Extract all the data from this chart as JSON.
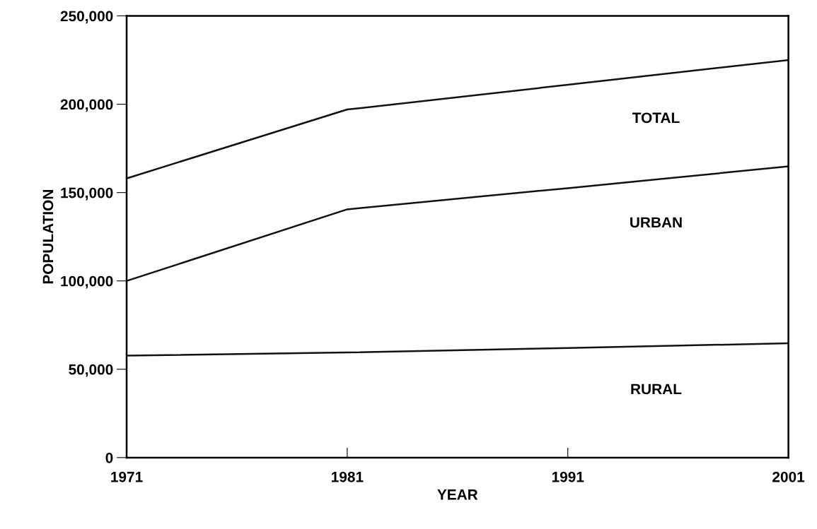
{
  "chart_data": {
    "type": "line",
    "xlabel": "YEAR",
    "ylabel": "POPULATION",
    "x": [
      1971,
      1981,
      1991,
      2001
    ],
    "series": [
      {
        "name": "TOTAL",
        "color": "#111111",
        "values": [
          158000,
          197000,
          211000,
          225000
        ]
      },
      {
        "name": "URBAN",
        "color": "#111111",
        "values": [
          100000,
          140500,
          152500,
          164800
        ]
      },
      {
        "name": "RURAL",
        "color": "#111111",
        "values": [
          57700,
          59500,
          62000,
          64700
        ]
      }
    ],
    "xlim": [
      1971,
      2001
    ],
    "xticks": [
      1971,
      1981,
      1991,
      2001
    ],
    "ylim": [
      0,
      250000
    ],
    "yticks": [
      {
        "value": 0,
        "label": "0"
      },
      {
        "value": 50000,
        "label": "50,000"
      },
      {
        "value": 100000,
        "label": "100,000"
      },
      {
        "value": 150000,
        "label": "150,000"
      },
      {
        "value": 200000,
        "label": "200,000"
      },
      {
        "value": 250000,
        "label": "250,000"
      }
    ],
    "grid": false,
    "legend": false,
    "marker": "none",
    "line_style": "solid"
  }
}
